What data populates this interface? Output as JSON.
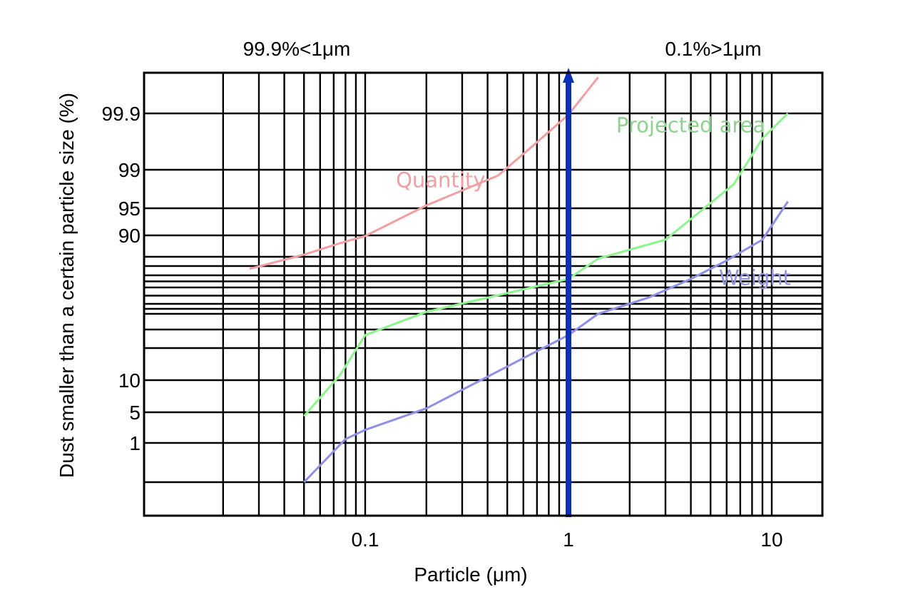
{
  "chart_data": {
    "type": "line",
    "title": "",
    "xlabel": "Particle (μm)",
    "ylabel": "Dust smaller than a certain particle size (%)",
    "x_scale": "log",
    "y_scale": "probability",
    "xlim": [
      0.01,
      12
    ],
    "x_ticks": [
      {
        "value": 0.1,
        "label": "0.1"
      },
      {
        "value": 1,
        "label": "1"
      },
      {
        "value": 10,
        "label": "10"
      }
    ],
    "y_ticks": [
      {
        "value": 99.9,
        "label": "99.9"
      },
      {
        "value": 99,
        "label": "99"
      },
      {
        "value": 95,
        "label": "95"
      },
      {
        "value": 90,
        "label": "90"
      },
      {
        "value": 10,
        "label": "10"
      },
      {
        "value": 5,
        "label": "5"
      },
      {
        "value": 1,
        "label": "1"
      }
    ],
    "grid": true,
    "annotations": [
      {
        "text": "99.9%<1μm",
        "position": "top-left"
      },
      {
        "text": "0.1%>1μm",
        "position": "top-right"
      }
    ],
    "marker_line": {
      "x": 1,
      "color": "#0b2fb8"
    },
    "series": [
      {
        "name": "Quantity",
        "color": "#f0a0a3",
        "label_color": "#f0a0a3",
        "points": [
          [
            0.027,
            73.5
          ],
          [
            0.05,
            81
          ],
          [
            0.075,
            86.3
          ],
          [
            0.1,
            89.7
          ],
          [
            0.2,
            95.3
          ],
          [
            0.45,
            98.4
          ],
          [
            0.65,
            99.35
          ],
          [
            1.0,
            99.88
          ],
          [
            1.4,
            99.98
          ]
        ]
      },
      {
        "name": "Projected area",
        "color": "#8df58d",
        "label_color": "#8fd18f",
        "points": [
          [
            0.05,
            4.5
          ],
          [
            0.075,
            11.5
          ],
          [
            0.1,
            27
          ],
          [
            0.2,
            42
          ],
          [
            1.0,
            67
          ],
          [
            1.4,
            79
          ],
          [
            3,
            88
          ],
          [
            6.5,
            97.5
          ],
          [
            9,
            99.5
          ],
          [
            12,
            99.9
          ]
        ]
      },
      {
        "name": "Weight",
        "color": "#8f8fe6",
        "label_color": "#9595df",
        "points": [
          [
            0.05,
            0.5
          ],
          [
            0.08,
            1.5
          ],
          [
            0.1,
            2.7
          ],
          [
            0.2,
            5.6
          ],
          [
            0.65,
            18
          ],
          [
            1.0,
            27
          ],
          [
            1.4,
            40
          ],
          [
            2.5,
            54
          ],
          [
            4,
            67
          ],
          [
            6,
            78
          ],
          [
            9,
            88
          ],
          [
            12,
            95.7
          ]
        ]
      }
    ]
  }
}
